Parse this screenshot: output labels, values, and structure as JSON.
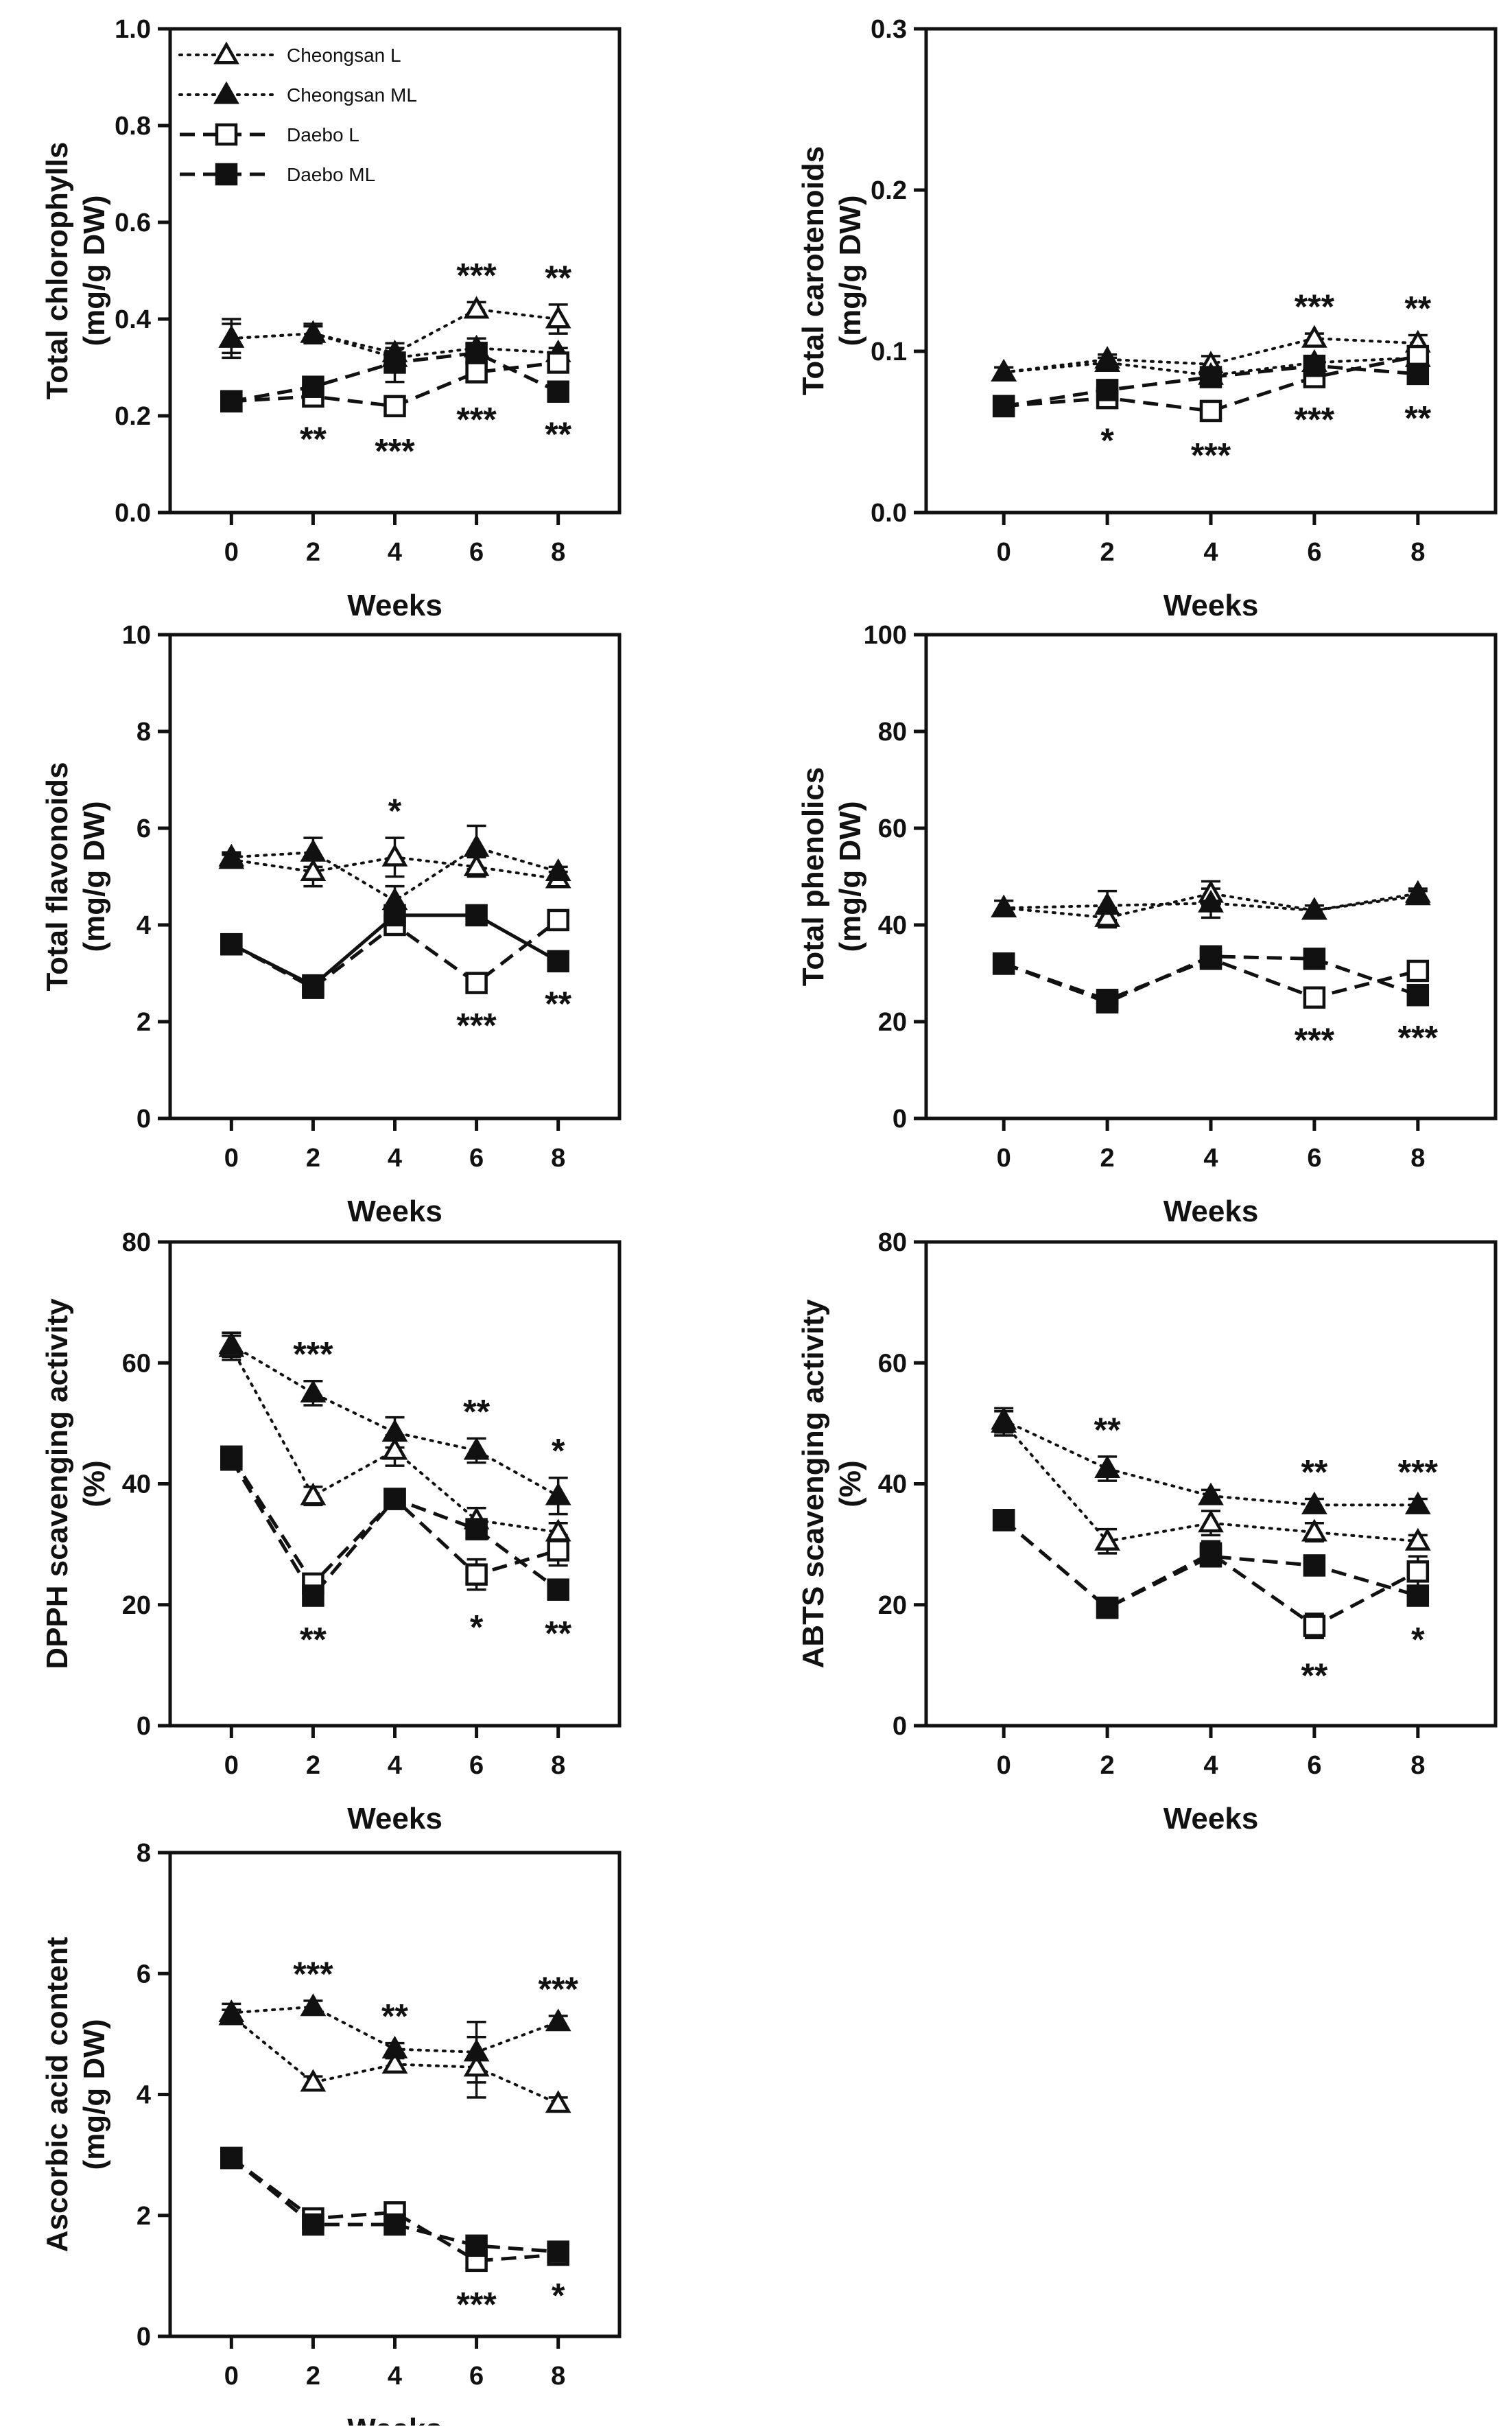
{
  "legend": [
    {
      "name": "Cheongsan L"
    },
    {
      "name": "Cheongsan ML"
    },
    {
      "name": "Daebo L"
    },
    {
      "name": "Daebo ML"
    }
  ],
  "chart_data": [
    {
      "type": "line",
      "xlabel": "Weeks",
      "ylabel": [
        "Total chlorophylls",
        "(mg/g DW)"
      ],
      "x": [
        0,
        2,
        4,
        6,
        8
      ],
      "xlim": [
        -1.5,
        9.5
      ],
      "ylim": [
        0,
        1.0
      ],
      "yticks": [
        "0.0",
        "0.2",
        "0.4",
        "0.6",
        "0.8",
        "1.0"
      ],
      "legend_shown": true,
      "series": [
        {
          "name": "Cheongsan L",
          "values": [
            0.36,
            0.37,
            0.33,
            0.42,
            0.4
          ],
          "errors": [
            0.04,
            0.015,
            0.02,
            0.015,
            0.03
          ]
        },
        {
          "name": "Cheongsan ML",
          "values": [
            0.36,
            0.37,
            0.32,
            0.34,
            0.33
          ],
          "errors": [
            0.03,
            0.02,
            0.02,
            0.02,
            0.01
          ]
        },
        {
          "name": "Daebo L",
          "values": [
            0.23,
            0.24,
            0.22,
            0.29,
            0.31
          ],
          "errors": [
            0.01,
            0.01,
            0.015,
            0.02,
            0.02
          ]
        },
        {
          "name": "Daebo ML",
          "values": [
            0.23,
            0.26,
            0.31,
            0.33,
            0.25
          ],
          "errors": [
            0.01,
            0.02,
            0.04,
            0.02,
            0.01
          ]
        }
      ],
      "annotations_above": [
        "",
        "",
        "",
        "***",
        "**"
      ],
      "annotations_below": [
        "",
        "**",
        "***",
        "***",
        "**"
      ]
    },
    {
      "type": "line",
      "xlabel": "Weeks",
      "ylabel": [
        "Total carotenoids",
        "(mg/g DW)"
      ],
      "x": [
        0,
        2,
        4,
        6,
        8
      ],
      "xlim": [
        -1.5,
        9.5
      ],
      "ylim": [
        0,
        0.3
      ],
      "yticks": [
        "0.0",
        "0.1",
        "0.2",
        "0.3"
      ],
      "series": [
        {
          "name": "Cheongsan L",
          "values": [
            0.087,
            0.095,
            0.092,
            0.108,
            0.105
          ],
          "errors": [
            0.003,
            0.003,
            0.005,
            0.003,
            0.005
          ]
        },
        {
          "name": "Cheongsan ML",
          "values": [
            0.087,
            0.093,
            0.085,
            0.093,
            0.096
          ],
          "errors": [
            0.003,
            0.003,
            0.005,
            0.004,
            0.005
          ]
        },
        {
          "name": "Daebo L",
          "values": [
            0.066,
            0.071,
            0.063,
            0.084,
            0.097
          ],
          "errors": [
            0.003,
            0.003,
            0.004,
            0.003,
            0.005
          ]
        },
        {
          "name": "Daebo ML",
          "values": [
            0.066,
            0.076,
            0.084,
            0.091,
            0.086
          ],
          "errors": [
            0.003,
            0.003,
            0.004,
            0.003,
            0.004
          ]
        }
      ],
      "annotations_above": [
        "",
        "",
        "",
        "***",
        "**"
      ],
      "annotations_below": [
        "",
        "*",
        "***",
        "***",
        "**"
      ]
    },
    {
      "type": "line",
      "xlabel": "Weeks",
      "ylabel": [
        "Total flavonoids",
        "(mg/g DW)"
      ],
      "x": [
        0,
        2,
        4,
        6,
        8
      ],
      "xlim": [
        -1.5,
        9.5
      ],
      "ylim": [
        0,
        10
      ],
      "yticks": [
        "0",
        "2",
        "4",
        "6",
        "8",
        "10"
      ],
      "series": [
        {
          "name": "Cheongsan L",
          "values": [
            5.35,
            5.1,
            5.4,
            5.2,
            4.95
          ],
          "errors": [
            0.1,
            0.3,
            0.4,
            0.2,
            0.15
          ]
        },
        {
          "name": "Cheongsan ML",
          "values": [
            5.4,
            5.5,
            4.5,
            5.6,
            5.1
          ],
          "errors": [
            0.1,
            0.3,
            0.3,
            0.45,
            0.1
          ]
        },
        {
          "name": "Daebo L",
          "values": [
            3.6,
            2.7,
            4.0,
            2.8,
            4.1
          ],
          "errors": [
            0.1,
            0.1,
            0.15,
            0.1,
            0.1
          ]
        },
        {
          "name": "Daebo ML",
          "values": [
            3.6,
            2.75,
            4.2,
            4.2,
            3.25
          ],
          "errors": [
            0.1,
            0.1,
            0.1,
            0.1,
            0.1
          ]
        }
      ],
      "annotations_above": [
        "",
        "",
        "*",
        "",
        ""
      ],
      "annotations_below": [
        "",
        "",
        "",
        "***",
        "**"
      ]
    },
    {
      "type": "line",
      "xlabel": "Weeks",
      "ylabel": [
        "Total phenolics",
        "(mg/g DW)"
      ],
      "x": [
        0,
        2,
        4,
        6,
        8
      ],
      "xlim": [
        -1.5,
        9.5
      ],
      "ylim": [
        0,
        100
      ],
      "yticks": [
        "0",
        "20",
        "40",
        "60",
        "80",
        "100"
      ],
      "series": [
        {
          "name": "Cheongsan L",
          "values": [
            43.5,
            41.5,
            46.5,
            43,
            46
          ],
          "errors": [
            1.5,
            2,
            2.5,
            1,
            1
          ]
        },
        {
          "name": "Cheongsan ML",
          "values": [
            43.5,
            44,
            44.5,
            43,
            46.5
          ],
          "errors": [
            1.5,
            3,
            3,
            1,
            1
          ]
        },
        {
          "name": "Daebo L",
          "values": [
            32,
            24.5,
            33,
            25,
            30.5
          ],
          "errors": [
            1,
            1,
            1,
            1,
            1
          ]
        },
        {
          "name": "Daebo ML",
          "values": [
            32,
            24,
            33.5,
            33,
            25.5
          ],
          "errors": [
            1,
            1,
            1,
            1,
            1
          ]
        }
      ],
      "annotations_above": [
        "",
        "",
        "",
        "",
        ""
      ],
      "annotations_below": [
        "",
        "",
        "",
        "***",
        "***"
      ]
    },
    {
      "type": "line",
      "xlabel": "Weeks",
      "ylabel": [
        "DPPH scavenging activity",
        "(%)"
      ],
      "x": [
        0,
        2,
        4,
        6,
        8
      ],
      "xlim": [
        -1.5,
        9.5
      ],
      "ylim": [
        0,
        80
      ],
      "yticks": [
        "0",
        "20",
        "40",
        "60",
        "80"
      ],
      "series": [
        {
          "name": "Cheongsan L",
          "values": [
            62.5,
            38,
            45.5,
            34,
            32
          ],
          "errors": [
            2,
            1.5,
            2.5,
            2,
            1.5
          ]
        },
        {
          "name": "Cheongsan ML",
          "values": [
            63,
            55,
            48.5,
            45.5,
            38
          ],
          "errors": [
            2,
            2,
            2.5,
            2,
            3
          ]
        },
        {
          "name": "Daebo L",
          "values": [
            44.5,
            23.5,
            37.5,
            25,
            29
          ],
          "errors": [
            1,
            1,
            1,
            2.5,
            2.5
          ]
        },
        {
          "name": "Daebo ML",
          "values": [
            44,
            21.5,
            37.5,
            32.5,
            22.5
          ],
          "errors": [
            1,
            1,
            1,
            1.5,
            1
          ]
        }
      ],
      "annotations_above": [
        "",
        "***",
        "",
        "**",
        "*"
      ],
      "annotations_below": [
        "",
        "**",
        "",
        "*",
        "**"
      ]
    },
    {
      "type": "line",
      "xlabel": "Weeks",
      "ylabel": [
        "ABTS scavenging activity",
        "(%)"
      ],
      "x": [
        0,
        2,
        4,
        6,
        8
      ],
      "xlim": [
        -1.5,
        9.5
      ],
      "ylim": [
        0,
        80
      ],
      "yticks": [
        "0",
        "20",
        "40",
        "60",
        "80"
      ],
      "series": [
        {
          "name": "Cheongsan L",
          "values": [
            50,
            30.5,
            33.5,
            32,
            30.5
          ],
          "errors": [
            2,
            2,
            2,
            1.5,
            1
          ]
        },
        {
          "name": "Cheongsan ML",
          "values": [
            50.5,
            42.5,
            38,
            36.5,
            36.5
          ],
          "errors": [
            2,
            2,
            1,
            1,
            1
          ]
        },
        {
          "name": "Daebo L",
          "values": [
            34,
            19.5,
            28.5,
            16.5,
            25.5
          ],
          "errors": [
            1,
            1,
            2,
            2,
            2.5
          ]
        },
        {
          "name": "Daebo ML",
          "values": [
            34,
            19.5,
            28,
            26.5,
            21.5
          ],
          "errors": [
            1,
            1,
            1,
            1,
            1
          ]
        }
      ],
      "annotations_above": [
        "",
        "**",
        "",
        "**",
        "***"
      ],
      "annotations_below": [
        "",
        "",
        "",
        "**",
        "*"
      ]
    },
    {
      "type": "line",
      "xlabel": "Weeks",
      "ylabel": [
        "Ascorbic acid content",
        "(mg/g DW)"
      ],
      "x": [
        0,
        2,
        4,
        6,
        8
      ],
      "xlim": [
        -1.5,
        9.5
      ],
      "ylim": [
        0,
        8
      ],
      "yticks": [
        "0",
        "2",
        "4",
        "6",
        "8"
      ],
      "series": [
        {
          "name": "Cheongsan L",
          "values": [
            5.3,
            4.2,
            4.5,
            4.45,
            3.85
          ],
          "errors": [
            0.1,
            0.1,
            0.1,
            0.5,
            0.1
          ]
        },
        {
          "name": "Cheongsan ML",
          "values": [
            5.35,
            5.45,
            4.75,
            4.7,
            5.2
          ],
          "errors": [
            0.15,
            0.1,
            0.1,
            0.5,
            0.1
          ]
        },
        {
          "name": "Daebo L",
          "values": [
            2.95,
            1.95,
            2.05,
            1.25,
            1.35
          ],
          "errors": [
            0.05,
            0.05,
            0.05,
            0.1,
            0.05
          ]
        },
        {
          "name": "Daebo ML",
          "values": [
            2.95,
            1.85,
            1.85,
            1.5,
            1.4
          ],
          "errors": [
            0.05,
            0.05,
            0.05,
            0.05,
            0.05
          ]
        }
      ],
      "annotations_above": [
        "",
        "***",
        "**",
        "",
        "***"
      ],
      "annotations_below": [
        "",
        "",
        "",
        "***",
        "*"
      ]
    }
  ]
}
